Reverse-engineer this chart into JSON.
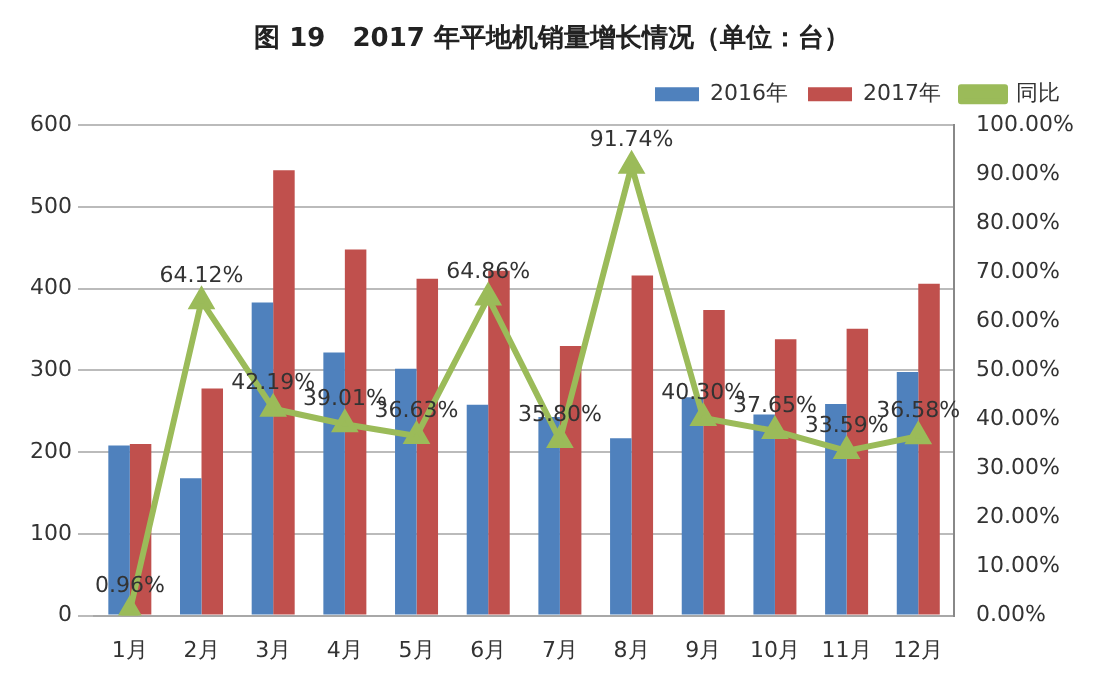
{
  "chart_data": {
    "type": "bar",
    "title": "图 19   2017 年平地机销量增长情况（单位：台）",
    "categories": [
      "1月",
      "2月",
      "3月",
      "4月",
      "5月",
      "6月",
      "7月",
      "8月",
      "9月",
      "10月",
      "11月",
      "12月"
    ],
    "series": [
      {
        "name": "2016年",
        "color": "#4f81bd",
        "values": [
          208,
          168,
          383,
          322,
          302,
          258,
          243,
          217,
          267,
          246,
          259,
          298
        ]
      },
      {
        "name": "2017年",
        "color": "#c0504d",
        "values": [
          210,
          278,
          545,
          448,
          412,
          422,
          330,
          416,
          374,
          338,
          351,
          406
        ]
      },
      {
        "name": "同比",
        "type": "line",
        "axis": "y2",
        "color": "#9bbb59",
        "marker": "triangle",
        "values": [
          0.96,
          64.12,
          42.19,
          39.01,
          36.63,
          64.86,
          35.8,
          91.74,
          40.3,
          37.65,
          33.59,
          36.58
        ],
        "value_labels": [
          "0.96%",
          "64.12%",
          "42.19%",
          "39.01%",
          "36.63%",
          "64.86%",
          "35.80%",
          "91.74%",
          "40.30%",
          "37.65%",
          "33.59%",
          "36.58%"
        ]
      }
    ],
    "ylim": [
      0,
      600
    ],
    "yticks": [
      0,
      100,
      200,
      300,
      400,
      500,
      600
    ],
    "y2lim": [
      0,
      100
    ],
    "y2ticks": [
      {
        "value": 0,
        "label": "0.00%"
      },
      {
        "value": 10,
        "label": "10.00%"
      },
      {
        "value": 20,
        "label": "20.00%"
      },
      {
        "value": 30,
        "label": "30.00%"
      },
      {
        "value": 40,
        "label": "40.00%"
      },
      {
        "value": 50,
        "label": "50.00%"
      },
      {
        "value": 60,
        "label": "60.00%"
      },
      {
        "value": 70,
        "label": "70.00%"
      },
      {
        "value": 80,
        "label": "80.00%"
      },
      {
        "value": 90,
        "label": "90.00%"
      },
      {
        "value": 100,
        "label": "100.00%"
      }
    ],
    "grid": "y",
    "legend": "top right"
  }
}
